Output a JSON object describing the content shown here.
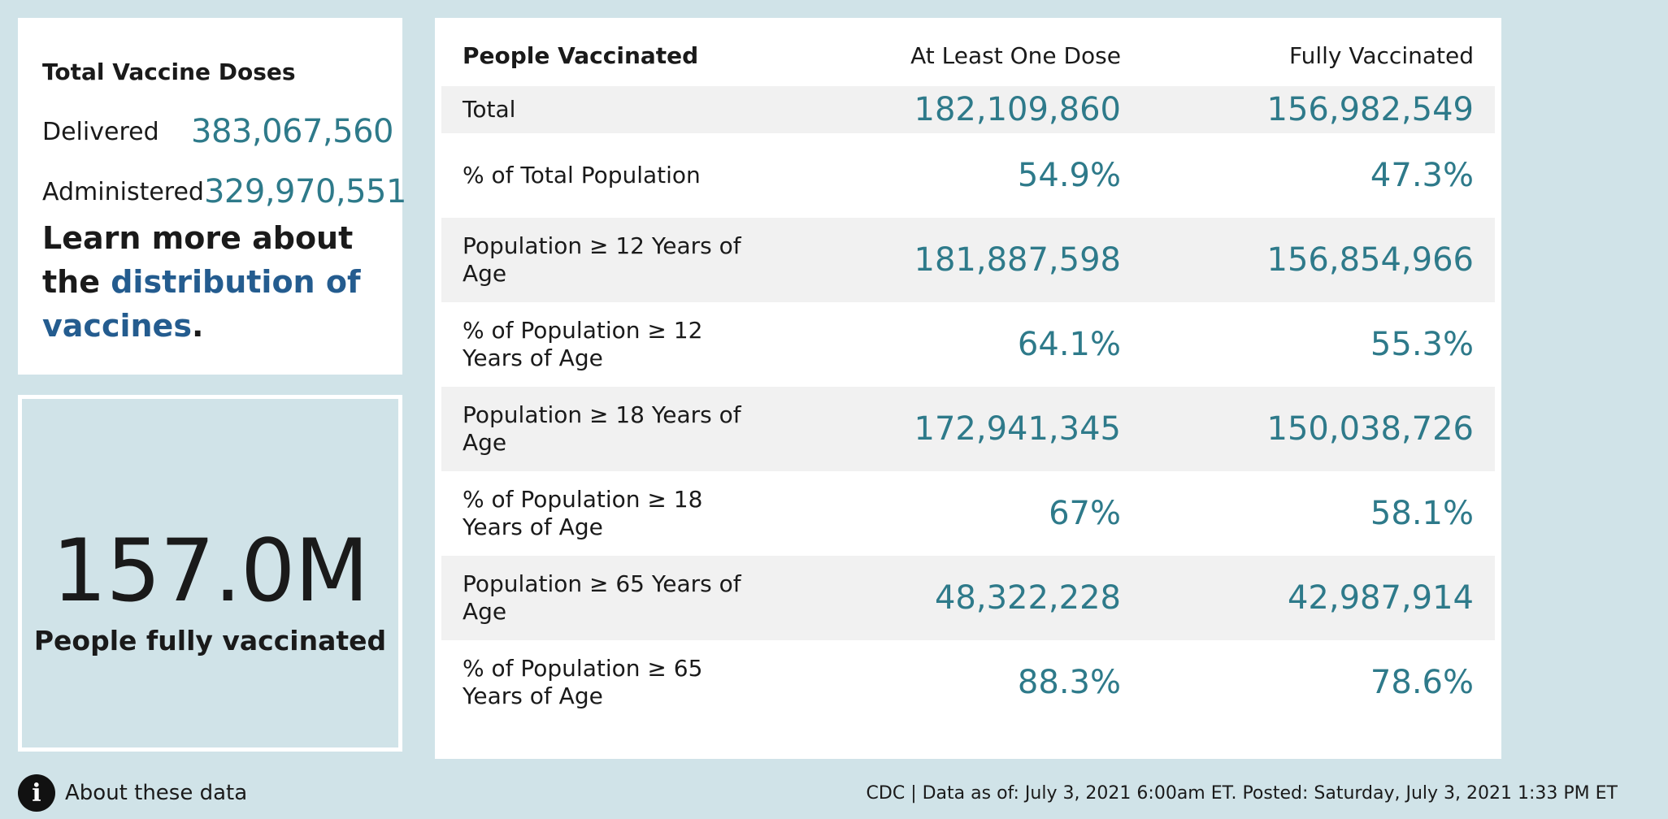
{
  "doses": {
    "title": "Total Vaccine Doses",
    "delivered_label": "Delivered",
    "delivered_value": "383,067,560",
    "administered_label": "Administered",
    "administered_value": "329,970,551"
  },
  "learn_more": {
    "prefix": "Learn more about the ",
    "link_text": "distribution of vaccines",
    "suffix": "."
  },
  "fully": {
    "number": "157.0M",
    "label": "People fully vaccinated"
  },
  "table": {
    "headers": [
      "People Vaccinated",
      "At Least One Dose",
      "Fully Vaccinated"
    ],
    "rows": [
      {
        "label": "Total",
        "one_dose": "182,109,860",
        "fully": "156,982,549"
      },
      {
        "label": "% of Total Population",
        "one_dose": "54.9%",
        "fully": "47.3%"
      },
      {
        "label": "Population ≥ 12 Years of Age",
        "one_dose": "181,887,598",
        "fully": "156,854,966"
      },
      {
        "label": "% of Population ≥ 12 Years of Age",
        "one_dose": "64.1%",
        "fully": "55.3%"
      },
      {
        "label": "Population ≥ 18 Years of Age",
        "one_dose": "172,941,345",
        "fully": "150,038,726"
      },
      {
        "label": "% of Population ≥ 18 Years of Age",
        "one_dose": "67%",
        "fully": "58.1%"
      },
      {
        "label": "Population ≥ 65 Years of Age",
        "one_dose": "48,322,228",
        "fully": "42,987,914"
      },
      {
        "label": "% of Population ≥ 65 Years of Age",
        "one_dose": "88.3%",
        "fully": "78.6%"
      }
    ]
  },
  "footer": {
    "about_icon": "info-icon",
    "about_text": "About these data",
    "note": "CDC | Data as of: July 3, 2021 6:00am ET. Posted: Saturday, July 3, 2021 1:33 PM ET"
  },
  "colors": {
    "background": "#d0e3e8",
    "value_teal": "#2e7a8a",
    "link_blue": "#245c8f",
    "row_shade": "#f1f1f1"
  }
}
